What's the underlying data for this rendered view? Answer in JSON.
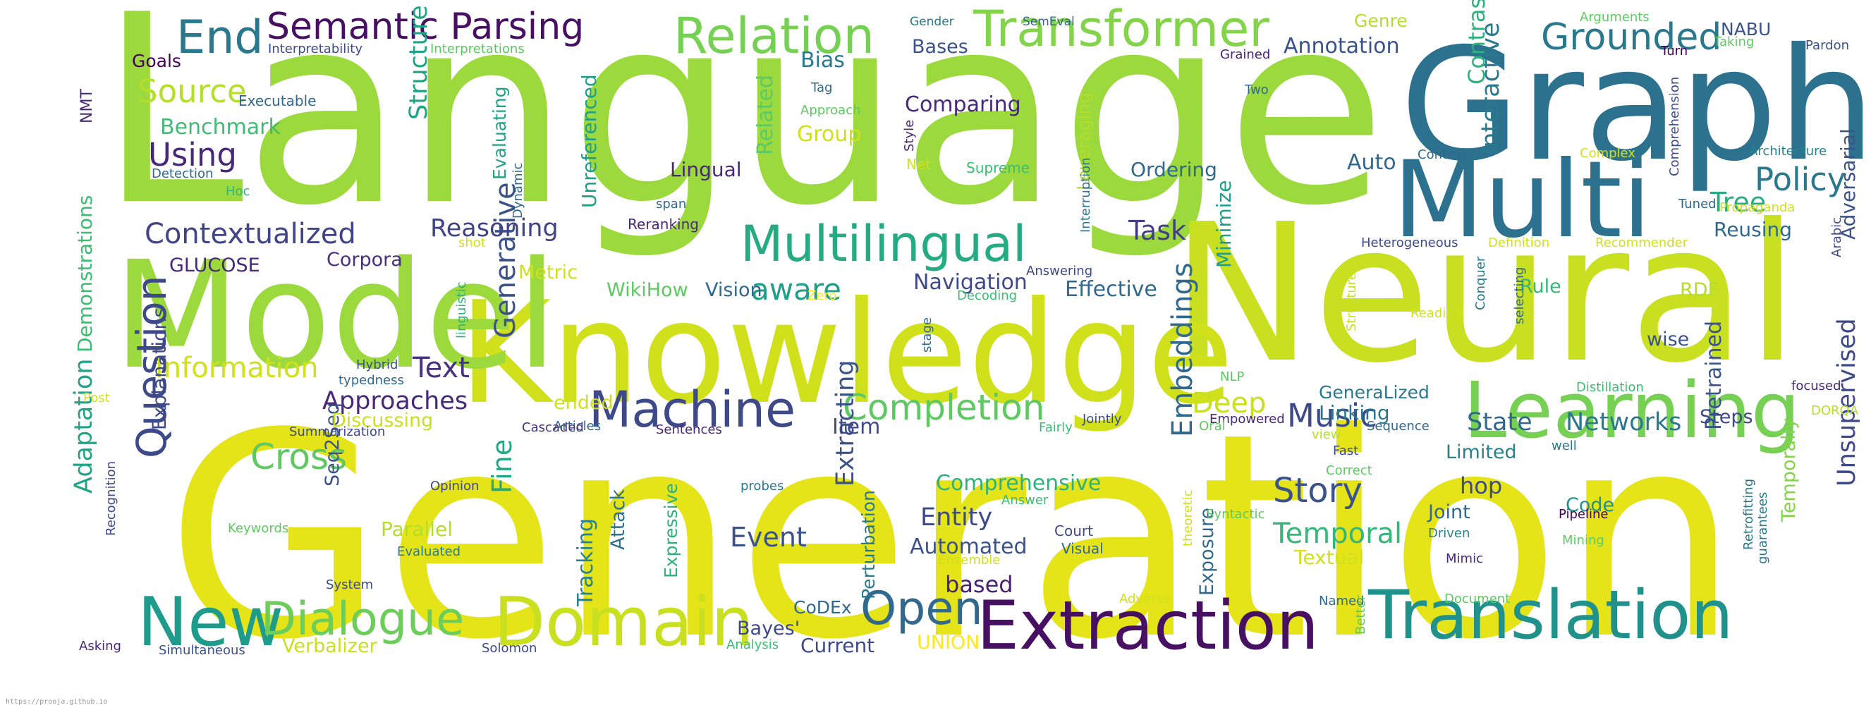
{
  "footer_text": "https://prooja.github.io",
  "palette": [
    "#fde725",
    "#b5de2b",
    "#6ece58",
    "#35b779",
    "#1f9e89",
    "#26828e",
    "#31688e",
    "#3e4989",
    "#482878",
    "#440154"
  ],
  "words": [
    {
      "t": "Language",
      "c": "#9bd93c"
    },
    {
      "t": "Generation",
      "c": "#e5e419"
    },
    {
      "t": "Neural",
      "c": "#c8e020"
    },
    {
      "t": "Knowledge",
      "c": "#d0e11c"
    },
    {
      "t": "Graph",
      "c": "#2c728e"
    },
    {
      "t": "Model",
      "c": "#9bd93c"
    },
    {
      "t": "Multi",
      "c": "#2c728e"
    },
    {
      "t": "Learning",
      "c": "#75d054"
    },
    {
      "t": "Translation",
      "c": "#21918c"
    },
    {
      "t": "Extraction",
      "c": "#471063"
    },
    {
      "t": "Domain",
      "c": "#c8e020"
    },
    {
      "t": "New",
      "c": "#1e9b8a"
    },
    {
      "t": "Dialogue",
      "c": "#6ccd5a"
    },
    {
      "t": "Multilingual",
      "c": "#25ab82"
    },
    {
      "t": "Transformer",
      "c": "#84d44b"
    },
    {
      "t": "Relation",
      "c": "#75d054"
    },
    {
      "t": "Semantic Parsing",
      "c": "#471063"
    },
    {
      "t": "End",
      "c": "#2a788e"
    },
    {
      "t": "Machine",
      "c": "#3e4989"
    },
    {
      "t": "Question",
      "c": "#3e4989"
    },
    {
      "t": "Completion",
      "c": "#5ec962"
    },
    {
      "t": "Cross",
      "c": "#5ec962"
    },
    {
      "t": "Open",
      "c": "#31688e"
    },
    {
      "t": "Grounded",
      "c": "#2a788e"
    },
    {
      "t": "Policy",
      "c": "#2a788e"
    },
    {
      "t": "Contextualized",
      "c": "#414487"
    },
    {
      "t": "Source",
      "c": "#b5de2b"
    },
    {
      "t": "Using",
      "c": "#482878"
    },
    {
      "t": "Story",
      "c": "#3b528b"
    },
    {
      "t": "Embeddings",
      "c": "#31688e"
    },
    {
      "t": "Generative",
      "c": "#3b528b"
    },
    {
      "t": "Text",
      "c": "#46327e"
    },
    {
      "t": "Information",
      "c": "#d0e11c"
    },
    {
      "t": "Deep",
      "c": "#c8e020"
    },
    {
      "t": "Music",
      "c": "#3e4989"
    },
    {
      "t": "State",
      "c": "#31688e"
    },
    {
      "t": "Networks",
      "c": "#2a788e"
    },
    {
      "t": "Temporal",
      "c": "#35b779"
    },
    {
      "t": "Adaptation",
      "c": "#20a486"
    },
    {
      "t": "Unsupervised",
      "c": "#3e4989"
    },
    {
      "t": "Task",
      "c": "#433e85"
    },
    {
      "t": "Reasoning",
      "c": "#414487"
    },
    {
      "t": "Structure",
      "c": "#20a486"
    },
    {
      "t": "aware",
      "c": "#1f9e89"
    },
    {
      "t": "Approaches",
      "c": "#482878"
    },
    {
      "t": "Fine",
      "c": "#22a884"
    },
    {
      "t": "Event",
      "c": "#3b528b"
    },
    {
      "t": "Entity",
      "c": "#3e4989"
    },
    {
      "t": "Comprehensive",
      "c": "#2db27d"
    },
    {
      "t": "Automated",
      "c": "#3b528b"
    },
    {
      "t": "based",
      "c": "#482173"
    },
    {
      "t": "Extracting",
      "c": "#3b528b"
    },
    {
      "t": "Interactive",
      "c": "#2a788e"
    },
    {
      "t": "Contrastive",
      "c": "#2db27d"
    },
    {
      "t": "Tree",
      "c": "#27ad81"
    },
    {
      "t": "Adversarial",
      "c": "#3b528b"
    },
    {
      "t": "Pretrained",
      "c": "#3b528b"
    },
    {
      "t": "Bias",
      "c": "#2a788e"
    },
    {
      "t": "Bases",
      "c": "#3b528b"
    },
    {
      "t": "Annotation",
      "c": "#3b528b"
    },
    {
      "t": "Comparing",
      "c": "#482878"
    },
    {
      "t": "Benchmark",
      "c": "#3dbc74"
    },
    {
      "t": "Goals",
      "c": "#440154"
    },
    {
      "t": "Corpora",
      "c": "#46327e"
    },
    {
      "t": "GLUCOSE",
      "c": "#482878"
    },
    {
      "t": "Demonstrations",
      "c": "#3dbc74"
    },
    {
      "t": "Explanations",
      "c": "#3e4989"
    },
    {
      "t": "Seq2Seq",
      "c": "#3b528b"
    },
    {
      "t": "Parallel",
      "c": "#b5de2b"
    },
    {
      "t": "Discussing",
      "c": "#c8e020"
    },
    {
      "t": "Verbalizer",
      "c": "#c8e020"
    },
    {
      "t": "Bayes'",
      "c": "#3e4989"
    },
    {
      "t": "CoDEx",
      "c": "#31688e"
    },
    {
      "t": "Current",
      "c": "#3e4989"
    },
    {
      "t": "UNION",
      "c": "#fde725"
    },
    {
      "t": "Navigation",
      "c": "#3e4989"
    },
    {
      "t": "Effective",
      "c": "#31688e"
    },
    {
      "t": "Vision",
      "c": "#31688e"
    },
    {
      "t": "WikiHow",
      "c": "#5ec962"
    },
    {
      "t": "Metric",
      "c": "#d0e11c"
    },
    {
      "t": "Lingual",
      "c": "#482878"
    },
    {
      "t": "Related",
      "c": "#5ec962"
    },
    {
      "t": "Group",
      "c": "#d0e11c"
    },
    {
      "t": "Unreferenced",
      "c": "#1f9e89"
    },
    {
      "t": "Evaluating",
      "c": "#20a486"
    },
    {
      "t": "Leveraging",
      "c": "#b5de2b"
    },
    {
      "t": "Ordering",
      "c": "#31688e"
    },
    {
      "t": "Auto",
      "c": "#31688e"
    },
    {
      "t": "Minimize",
      "c": "#1f9e89"
    },
    {
      "t": "Linking",
      "c": "#2a788e"
    },
    {
      "t": "GeneraLized",
      "c": "#2a788e"
    },
    {
      "t": "Reusing",
      "c": "#31688e"
    },
    {
      "t": "Rule",
      "c": "#35b779"
    },
    {
      "t": "RDF",
      "c": "#b5de2b"
    },
    {
      "t": "wise",
      "c": "#3b528b"
    },
    {
      "t": "Steps",
      "c": "#3e4989"
    },
    {
      "t": "Limited",
      "c": "#26828e"
    },
    {
      "t": "hop",
      "c": "#3e4989"
    },
    {
      "t": "Joint",
      "c": "#31688e"
    },
    {
      "t": "Code",
      "c": "#21918c"
    },
    {
      "t": "Textual",
      "c": "#d0e11c"
    },
    {
      "t": "Exposure",
      "c": "#31688e"
    },
    {
      "t": "Tracking",
      "c": "#26828e"
    },
    {
      "t": "Attack",
      "c": "#2c728e"
    },
    {
      "t": "Expressive",
      "c": "#2db27d"
    },
    {
      "t": "Perturbation",
      "c": "#2a788e"
    },
    {
      "t": "Item",
      "c": "#3e4989"
    },
    {
      "t": "ended",
      "c": "#d0e11c"
    },
    {
      "t": "Temporally",
      "c": "#84d44b"
    },
    {
      "t": "NABU",
      "c": "#3b528b"
    },
    {
      "t": "Architecture",
      "c": "#26828e"
    },
    {
      "t": "Executable",
      "c": "#31688e"
    },
    {
      "t": "Interpretability",
      "c": "#3e4989"
    },
    {
      "t": "Interpretations",
      "c": "#5ec962"
    },
    {
      "t": "Gender",
      "c": "#2a788e"
    },
    {
      "t": "SemEval",
      "c": "#31688e"
    },
    {
      "t": "Genre",
      "c": "#b5de2b"
    },
    {
      "t": "Arguments",
      "c": "#5ec962"
    },
    {
      "t": "Pardon",
      "c": "#3b528b"
    },
    {
      "t": "Taking",
      "c": "#5ec962"
    },
    {
      "t": "Turn",
      "c": "#440154"
    },
    {
      "t": "Grained",
      "c": "#482173"
    },
    {
      "t": "Two",
      "c": "#31688e"
    },
    {
      "t": "Tag",
      "c": "#31688e"
    },
    {
      "t": "Approach",
      "c": "#5ec962"
    },
    {
      "t": "Style",
      "c": "#482878"
    },
    {
      "t": "Interruption",
      "c": "#2a788e"
    },
    {
      "t": "Net",
      "c": "#d0e11c"
    },
    {
      "t": "Supreme",
      "c": "#3dbc74"
    },
    {
      "t": "Dynamic",
      "c": "#31688e"
    },
    {
      "t": "Context",
      "c": "#31688e"
    },
    {
      "t": "Complex",
      "c": "#d0e11c"
    },
    {
      "t": "Comprehension",
      "c": "#3e4989"
    },
    {
      "t": "Tuned",
      "c": "#31688e"
    },
    {
      "t": "Propaganda",
      "c": "#d0e11c"
    },
    {
      "t": "Definition",
      "c": "#d0e11c"
    },
    {
      "t": "Recommender",
      "c": "#d0e11c"
    },
    {
      "t": "Heterogeneous",
      "c": "#3e4989"
    },
    {
      "t": "Arabic",
      "c": "#3e4989"
    },
    {
      "t": "Reranking",
      "c": "#482878"
    },
    {
      "t": "span",
      "c": "#31688e"
    },
    {
      "t": "shot",
      "c": "#d0e11c"
    },
    {
      "t": "Decoding",
      "c": "#3dbc74"
    },
    {
      "t": "Answering",
      "c": "#3e4989"
    },
    {
      "t": "Zero",
      "c": "#fde725"
    },
    {
      "t": "linguistic",
      "c": "#2db27d"
    },
    {
      "t": "stage",
      "c": "#31688e"
    },
    {
      "t": "Structured",
      "c": "#c8e020"
    },
    {
      "t": "Conquer",
      "c": "#2a788e"
    },
    {
      "t": "selecting",
      "c": "#31688e"
    },
    {
      "t": "Reading",
      "c": "#d0e11c"
    },
    {
      "t": "Distillation",
      "c": "#3dbc74"
    },
    {
      "t": "focused",
      "c": "#482878"
    },
    {
      "t": "NLP",
      "c": "#5ec962"
    },
    {
      "t": "Empowered",
      "c": "#482878"
    },
    {
      "t": "Oral",
      "c": "#5ec962"
    },
    {
      "t": "Sequence",
      "c": "#31688e"
    },
    {
      "t": "view",
      "c": "#b5de2b"
    },
    {
      "t": "Fast",
      "c": "#3e4989"
    },
    {
      "t": "Correct",
      "c": "#5ec962"
    },
    {
      "t": "well",
      "c": "#2a788e"
    },
    {
      "t": "DORQA",
      "c": "#b5de2b"
    },
    {
      "t": "Hoc",
      "c": "#35b779"
    },
    {
      "t": "Detection",
      "c": "#31688e"
    },
    {
      "t": "NMT",
      "c": "#482878"
    },
    {
      "t": "Hybrid",
      "c": "#3b528b"
    },
    {
      "t": "typedness",
      "c": "#31688e"
    },
    {
      "t": "Post",
      "c": "#d0e11c"
    },
    {
      "t": "Summarization",
      "c": "#3e4989"
    },
    {
      "t": "Articles",
      "c": "#31688e"
    },
    {
      "t": "Cascaded",
      "c": "#46327e"
    },
    {
      "t": "Sentences",
      "c": "#482878"
    },
    {
      "t": "Fairly",
      "c": "#3dbc74"
    },
    {
      "t": "Jointly",
      "c": "#3e4989"
    },
    {
      "t": "Opinion",
      "c": "#3e4989"
    },
    {
      "t": "probes",
      "c": "#2a788e"
    },
    {
      "t": "Recognition",
      "c": "#3e4989"
    },
    {
      "t": "Keywords",
      "c": "#5ec962"
    },
    {
      "t": "Evaluated",
      "c": "#2a788e"
    },
    {
      "t": "System",
      "c": "#3e4989"
    },
    {
      "t": "Asking",
      "c": "#482878"
    },
    {
      "t": "Simultaneous",
      "c": "#3b528b"
    },
    {
      "t": "Solomon",
      "c": "#3e4989"
    },
    {
      "t": "Analysis",
      "c": "#3dbc74"
    },
    {
      "t": "Answer",
      "c": "#3dbc74"
    },
    {
      "t": "Court",
      "c": "#3e4989"
    },
    {
      "t": "Visual",
      "c": "#31688e"
    },
    {
      "t": "Ensemble",
      "c": "#d0e11c"
    },
    {
      "t": "Syntactic",
      "c": "#5ec962"
    },
    {
      "t": "theoretic",
      "c": "#d0e11c"
    },
    {
      "t": "Driven",
      "c": "#26828e"
    },
    {
      "t": "Mimic",
      "c": "#482878"
    },
    {
      "t": "Pipeline",
      "c": "#440154"
    },
    {
      "t": "Mining",
      "c": "#5ec962"
    },
    {
      "t": "Retrofitting",
      "c": "#2a788e"
    },
    {
      "t": "guarantees",
      "c": "#2a788e"
    },
    {
      "t": "Adverse",
      "c": "#d0e11c"
    },
    {
      "t": "Named",
      "c": "#31688e"
    },
    {
      "t": "Better",
      "c": "#5ec962"
    },
    {
      "t": "Document",
      "c": "#5ec962"
    }
  ]
}
